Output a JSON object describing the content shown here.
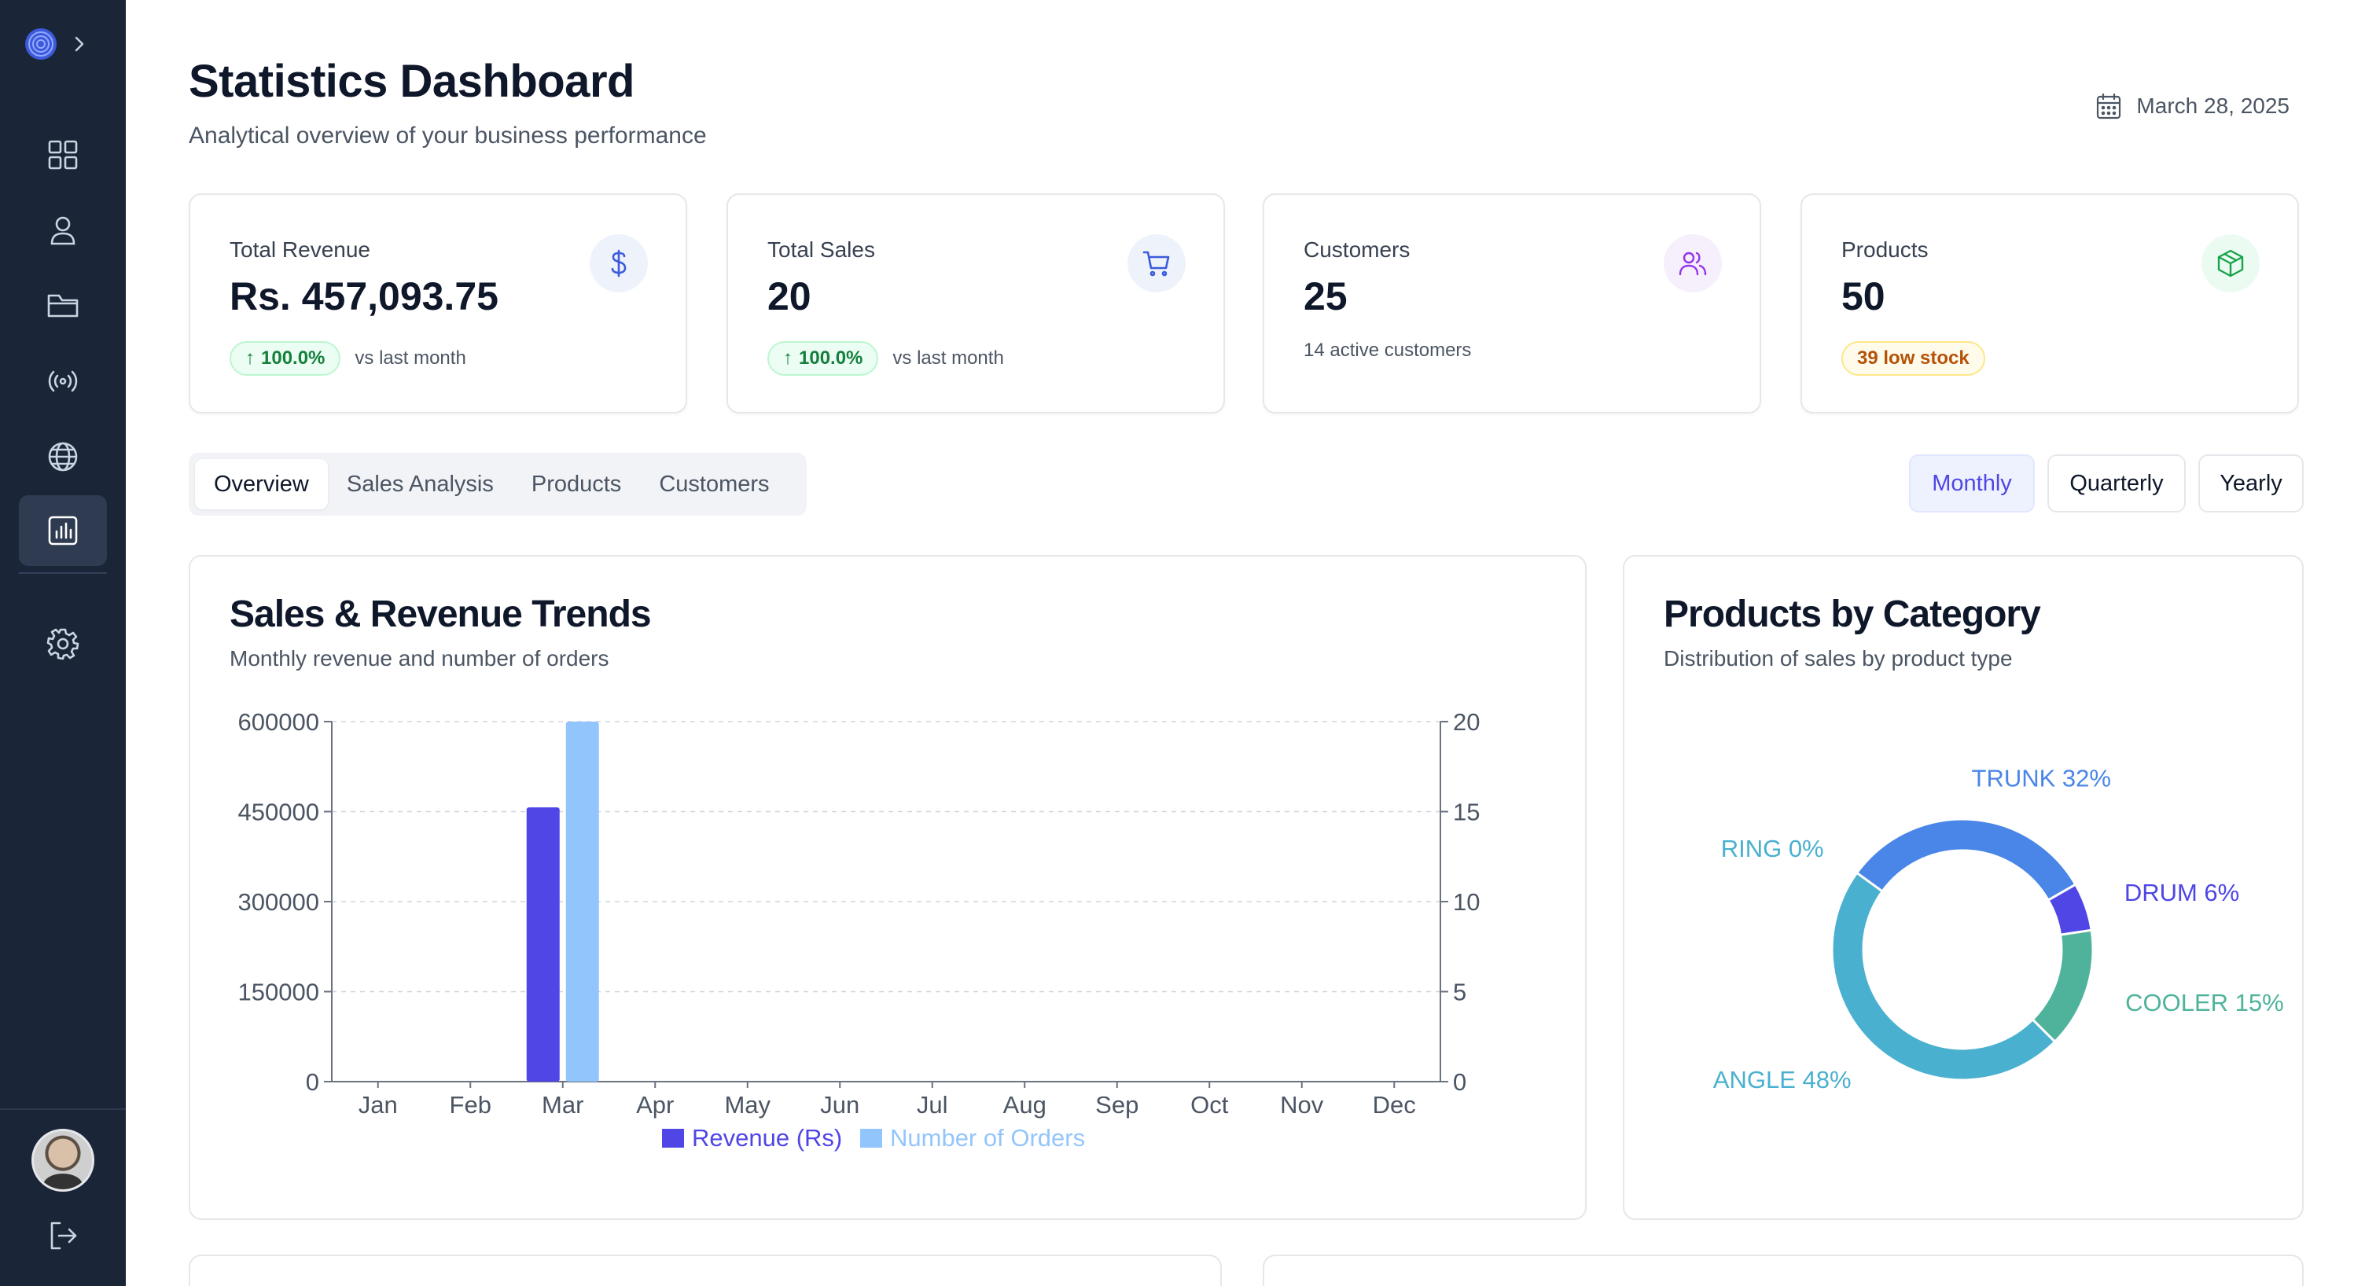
{
  "header": {
    "title": "Statistics Dashboard",
    "subtitle": "Analytical overview of your business performance",
    "date": "March 28, 2025"
  },
  "sidebar": {
    "items": [
      {
        "name": "dashboard",
        "icon": "grid-icon"
      },
      {
        "name": "users",
        "icon": "user-icon"
      },
      {
        "name": "files",
        "icon": "folder-icon"
      },
      {
        "name": "broadcast",
        "icon": "broadcast-icon"
      },
      {
        "name": "globe",
        "icon": "globe-icon"
      },
      {
        "name": "statistics",
        "icon": "bar-chart-icon",
        "active": true
      },
      {
        "name": "settings",
        "icon": "gear-icon"
      }
    ]
  },
  "stats": [
    {
      "label": "Total Revenue",
      "value": "Rs. 457,093.75",
      "change": "100.0%",
      "change_note": "vs last month",
      "icon": "dollar-icon"
    },
    {
      "label": "Total Sales",
      "value": "20",
      "change": "100.0%",
      "change_note": "vs last month",
      "icon": "cart-icon"
    },
    {
      "label": "Customers",
      "value": "25",
      "note": "14 active customers",
      "icon": "users-icon"
    },
    {
      "label": "Products",
      "value": "50",
      "badge": "39 low stock",
      "icon": "box-icon"
    }
  ],
  "tabs": [
    "Overview",
    "Sales Analysis",
    "Products",
    "Customers"
  ],
  "periods": [
    "Monthly",
    "Quarterly",
    "Yearly"
  ],
  "colors": {
    "revenue": "#4f46e5",
    "orders": "#93c5fd",
    "trunk": "#4a86e8",
    "drum": "#4f46e5",
    "cooler": "#4fb39b",
    "angle": "#4ab0cf",
    "ring": "#4ab0cf"
  },
  "trend_card": {
    "title": "Sales & Revenue Trends",
    "subtitle": "Monthly revenue and number of orders"
  },
  "category_card": {
    "title": "Products by Category",
    "subtitle": "Distribution of sales by product type"
  },
  "chart_data": [
    {
      "type": "bar",
      "title": "Sales & Revenue Trends",
      "categories": [
        "Jan",
        "Feb",
        "Mar",
        "Apr",
        "May",
        "Jun",
        "Jul",
        "Aug",
        "Sep",
        "Oct",
        "Nov",
        "Dec"
      ],
      "series": [
        {
          "name": "Revenue (Rs)",
          "axis": "left",
          "values": [
            0,
            0,
            457093.75,
            0,
            0,
            0,
            0,
            0,
            0,
            0,
            0,
            0
          ]
        },
        {
          "name": "Number of Orders",
          "axis": "right",
          "values": [
            0,
            0,
            20,
            0,
            0,
            0,
            0,
            0,
            0,
            0,
            0,
            0
          ]
        }
      ],
      "y_left_ticks": [
        "0",
        "150000",
        "300000",
        "450000",
        "600000"
      ],
      "y_right_ticks": [
        "0",
        "5",
        "10",
        "15",
        "20"
      ],
      "ylim_left": [
        0,
        600000
      ],
      "ylim_right": [
        0,
        20
      ],
      "grid": true,
      "legend": "bottom"
    },
    {
      "type": "pie",
      "title": "Products by Category",
      "donut": true,
      "slices": [
        {
          "name": "TRUNK",
          "value": 32,
          "label": "TRUNK 32%"
        },
        {
          "name": "DRUM",
          "value": 6,
          "label": "DRUM 6%"
        },
        {
          "name": "COOLER",
          "value": 15,
          "label": "COOLER 15%"
        },
        {
          "name": "ANGLE",
          "value": 48,
          "label": "ANGLE 48%"
        },
        {
          "name": "RING",
          "value": 0,
          "label": "RING 0%"
        }
      ]
    }
  ]
}
